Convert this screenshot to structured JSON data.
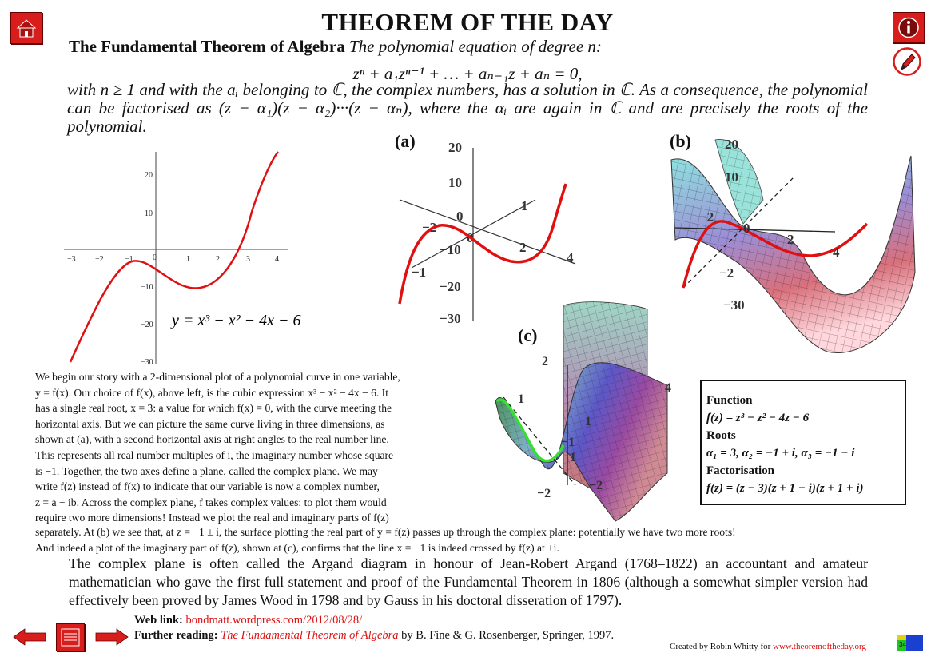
{
  "header": {
    "title": "THEOREM OF THE DAY",
    "theorem_name": "The Fundamental Theorem of Algebra",
    "theorem_intro": "The polynomial equation of degree n:",
    "equation": "zⁿ + a₁zⁿ⁻¹ + … + aₙ₋₁z + aₙ = 0,",
    "continuation": "with n ≥ 1 and with the aᵢ belonging to ℂ, the complex numbers, has a solution in ℂ. As a consequence, the polynomial can be factorised as (z − α₁)(z − α₂)···(z − αₙ), where the αᵢ are again in ℂ and are precisely the roots of the polynomial."
  },
  "figures": {
    "label_a": "(a)",
    "label_b": "(b)",
    "label_c": "(c)",
    "plot_equation": "y = x³ − x² − 4x − 6",
    "x_ticks": [
      "−3",
      "−2",
      "−1",
      "0",
      "1",
      "2",
      "3",
      "4"
    ],
    "y_ticks": [
      "20",
      "10",
      "−10",
      "−20",
      "−30"
    ],
    "a_ticks": {
      "y20": "20",
      "y10": "10",
      "y0": "0",
      "ym10": "−10",
      "ym20": "−20",
      "ym30": "−30",
      "x2": "2",
      "x4": "4",
      "xm2": "−2",
      "im1": "1",
      "imm1": "−1",
      "origin": "0"
    },
    "b_ticks": {
      "y20": "20",
      "y10": "10",
      "y0": "0",
      "ym30": "−30",
      "x2": "2",
      "x4": "4",
      "xm2": "−2",
      "ym2": "−2"
    },
    "c_ticks": {
      "t2": "2",
      "t1": "1",
      "t4": "4",
      "t1b": "1",
      "t1c": "1",
      "tm1": "−1",
      "tm2": "−2",
      "tm2b": "−2"
    }
  },
  "infobox": {
    "function_label": "Function",
    "function_text": "f(z) = z³ − z² − 4z − 6",
    "roots_label": "Roots",
    "roots_text": "α₁ = 3,  α₂ = −1 + i,  α₃ = −1 − i",
    "factorisation_label": "Factorisation",
    "factorisation_text": "f(z) = (z − 3)(z + 1 − i)(z + 1 + i)"
  },
  "body": {
    "lines1": [
      "We begin our story with a 2-dimensional plot of a polynomial curve in one variable,",
      "y = f(x). Our choice of f(x), above left, is the cubic expression x³ − x² − 4x − 6. It",
      "has a single real root, x = 3: a value for which f(x) = 0, with the curve meeting the",
      "horizontal axis. But we can picture the same curve living in three dimensions, as",
      "shown at (a), with a second horizontal axis at right angles to the real number line.",
      "This represents all real number multiples of i, the imaginary number whose square",
      "is −1. Together, the two axes define a plane, called the complex plane. We may",
      "write f(z) instead of f(x) to indicate that our variable is now a complex number,",
      "z = a + ib. Across the complex plane, f takes complex values: to plot them would",
      "require two more dimensions! Instead we plot the real and imaginary parts of f(z)"
    ],
    "lines2": [
      "separately. At (b) we see that, at z = −1 ± i, the surface plotting the real part of y = f(z) passes up through the complex plane: potentially we have two more roots!",
      "And indeed a plot of the imaginary part of f(z), shown at (c), confirms that the line x = −1 is indeed crossed by f(z) at ±i."
    ],
    "para3": "The complex plane is often called the Argand diagram in honour of Jean-Robert Argand (1768–1822) an accountant and amateur mathematician who gave the first full statement and proof of the Fundamental Theorem in 1806 (although a somewhat simpler version had effectively been proved by James Wood in 1798 and by Gauss in his doctoral disseration of 1797)."
  },
  "footer": {
    "web_label": "Web link:",
    "web_url": "bondmatt.wordpress.com/2012/08/28/",
    "further_label": "Further reading:",
    "further_title": "The Fundamental Theorem of Algebra",
    "further_rest": " by B. Fine & G. Rosenberger, Springer, 1997.",
    "credit_prefix": "Created by Robin Whitty for ",
    "credit_site": "www.theoremoftheday.org",
    "page_badge": "34"
  },
  "icons": {
    "home": "home-icon",
    "info": "info-icon",
    "pencil": "pencil-icon",
    "prev": "arrow-left-icon",
    "next": "arrow-right-icon",
    "index": "index-icon"
  },
  "colors": {
    "accent_red": "#d81d1d",
    "curve_red": "#e01010",
    "link_red": "#d11111"
  }
}
